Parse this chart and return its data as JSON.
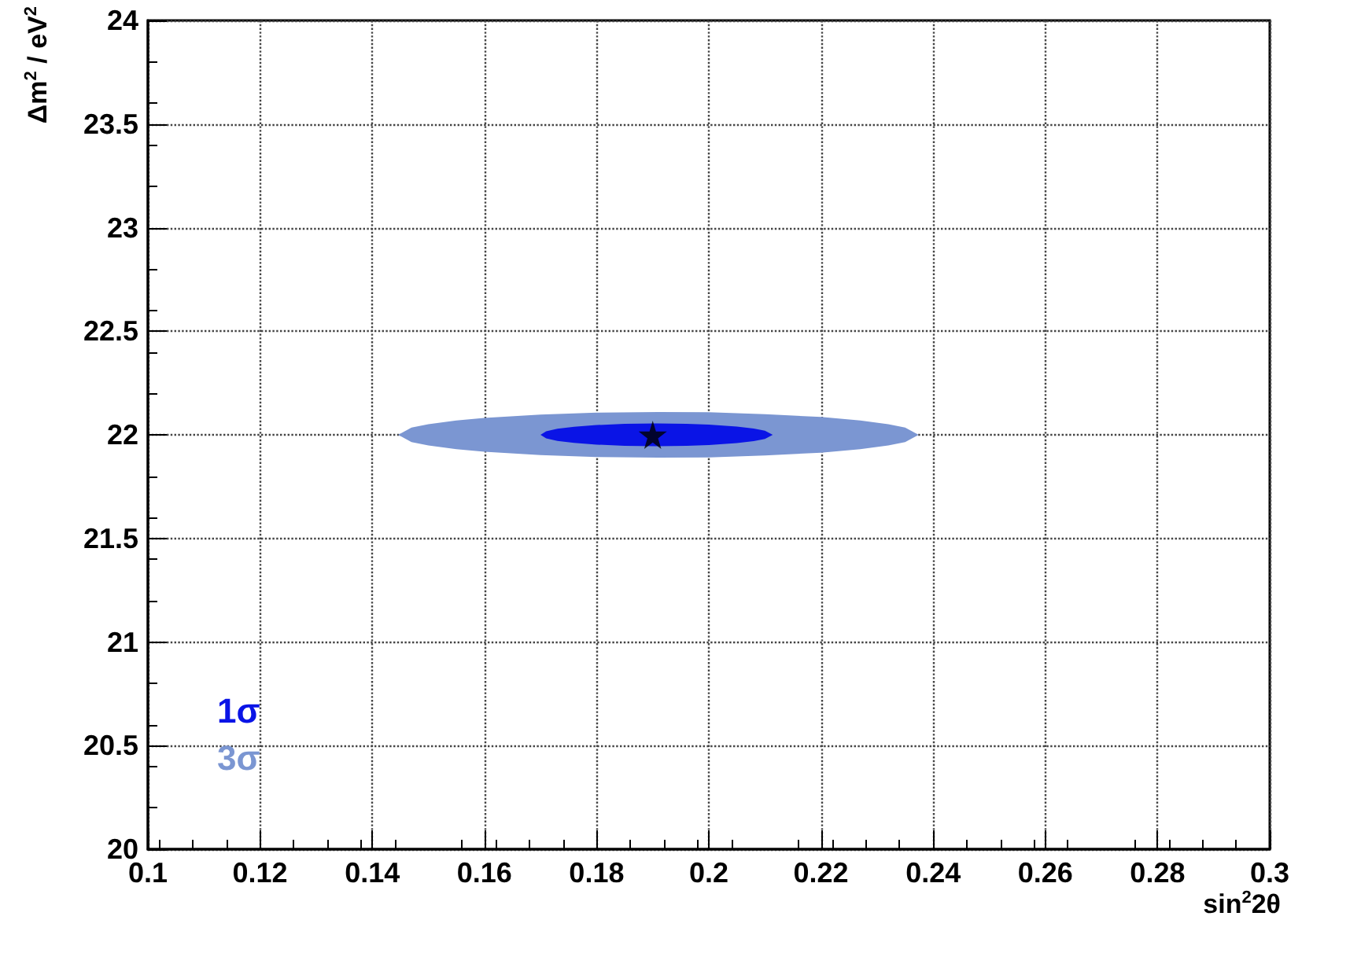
{
  "chart_data": {
    "type": "area",
    "xlabel": "sin$^{2}$2θ",
    "ylabel": "Δm$^{2}$ / eV$^{2}$",
    "xlim": [
      0.1,
      0.3
    ],
    "xticks": [
      0.1,
      0.12,
      0.14,
      0.16,
      0.18,
      0.2,
      0.22,
      0.24,
      0.26,
      0.28,
      0.3
    ],
    "ylim": [
      20,
      24
    ],
    "yticks": [
      20,
      20.5,
      21,
      21.5,
      22,
      22.5,
      23,
      23.5,
      24
    ],
    "grid": true,
    "legend": "bottom left",
    "series": [
      {
        "name": "3σ",
        "color": "#7b96d2",
        "x": [
          0.1446,
          0.147,
          0.15,
          0.155,
          0.16,
          0.17,
          0.18,
          0.191,
          0.2,
          0.21,
          0.22,
          0.227,
          0.232,
          0.235,
          0.2374,
          0.235,
          0.232,
          0.227,
          0.22,
          0.21,
          0.2,
          0.191,
          0.18,
          0.17,
          0.16,
          0.155,
          0.15,
          0.147
        ],
        "values": [
          22,
          22.035,
          22.051,
          22.069,
          22.082,
          22.098,
          22.107,
          22.11,
          22.109,
          22.1,
          22.086,
          22.069,
          22.051,
          22.035,
          22,
          21.965,
          21.949,
          21.931,
          21.914,
          21.9,
          21.891,
          21.89,
          21.893,
          21.902,
          21.918,
          21.931,
          21.949,
          21.965
        ]
      },
      {
        "name": "1σ",
        "color": "#0a14e6",
        "x": [
          0.17,
          0.171,
          0.173,
          0.176,
          0.18,
          0.185,
          0.1907,
          0.196,
          0.2,
          0.205,
          0.208,
          0.21,
          0.2114,
          0.21,
          0.208,
          0.205,
          0.2,
          0.196,
          0.1907,
          0.185,
          0.18,
          0.176,
          0.173,
          0.171
        ],
        "values": [
          22,
          22.017,
          22.029,
          22.039,
          22.047,
          22.053,
          22.055,
          22.053,
          22.049,
          22.04,
          22.03,
          22.02,
          22,
          21.98,
          21.97,
          21.96,
          21.951,
          21.947,
          21.945,
          21.947,
          21.953,
          21.961,
          21.971,
          21.983
        ]
      },
      {
        "type": "scatter",
        "color": "#000000",
        "marker": "star",
        "x": [
          0.19
        ],
        "values": [
          22
        ]
      }
    ]
  }
}
